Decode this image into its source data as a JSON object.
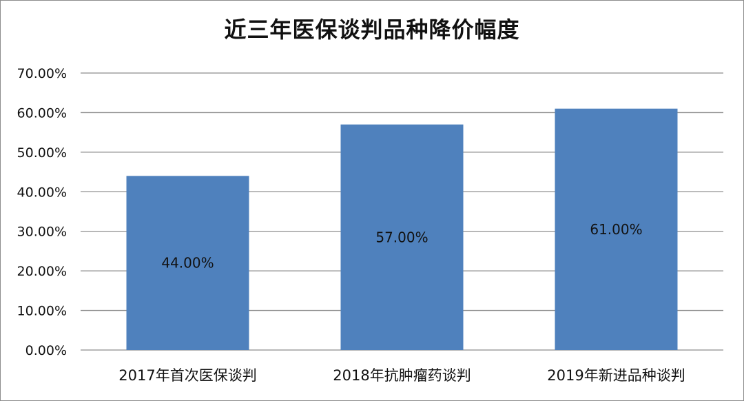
{
  "chart_data": {
    "type": "bar",
    "title": "近三年医保谈判品种降价幅度",
    "xlabel": "",
    "ylabel": "",
    "categories": [
      "2017年首次医保谈判",
      "2018年抗肿瘤药谈判",
      "2019年新进品种谈判"
    ],
    "values": [
      44.0,
      57.0,
      61.0
    ],
    "data_labels": [
      "44.00%",
      "57.00%",
      "61.00%"
    ],
    "ylim": [
      0,
      70
    ],
    "yticks": [
      0,
      10,
      20,
      30,
      40,
      50,
      60,
      70
    ],
    "ytick_labels": [
      "0.00%",
      "10.00%",
      "20.00%",
      "30.00%",
      "40.00%",
      "50.00%",
      "60.00%",
      "70.00%"
    ],
    "grid": true,
    "legend": "none",
    "colors": {
      "bar": "#4f81bd",
      "grid": "#8c8c8c",
      "text": "#111111"
    }
  }
}
